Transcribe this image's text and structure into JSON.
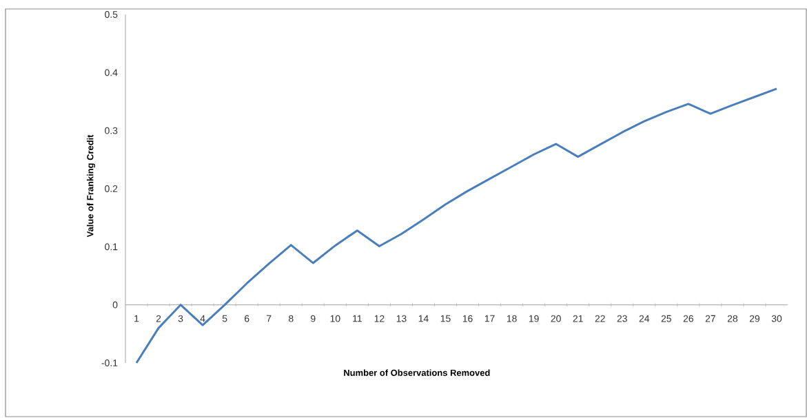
{
  "chart_data": {
    "type": "line",
    "xlabel": "Number of Observations Removed",
    "ylabel": "Value of Franking Credit",
    "categories": [
      "1",
      "2",
      "3",
      "4",
      "5",
      "6",
      "7",
      "8",
      "9",
      "10",
      "11",
      "12",
      "13",
      "14",
      "15",
      "16",
      "17",
      "18",
      "19",
      "20",
      "21",
      "22",
      "23",
      "24",
      "25",
      "26",
      "27",
      "28",
      "29",
      "30"
    ],
    "values": [
      -0.1,
      -0.04,
      0.0,
      -0.035,
      0.0,
      0.037,
      0.071,
      0.103,
      0.072,
      0.102,
      0.128,
      0.101,
      0.122,
      0.147,
      0.173,
      0.196,
      0.217,
      0.238,
      0.259,
      0.277,
      0.255,
      0.276,
      0.297,
      0.316,
      0.332,
      0.346,
      0.329,
      0.344,
      0.358,
      0.372
    ],
    "color": "#4a7ebb",
    "line_style": "solid",
    "ylim": [
      -0.1,
      0.5
    ],
    "yticks": [
      -0.1,
      0,
      0.1,
      0.2,
      0.3,
      0.4,
      0.5
    ]
  }
}
